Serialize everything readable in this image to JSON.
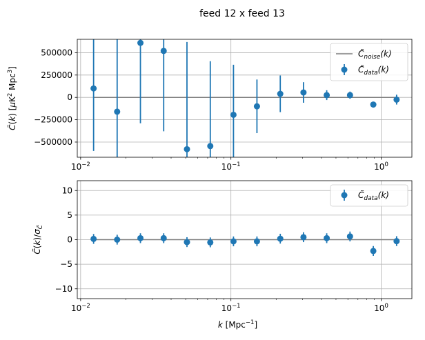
{
  "figure_title": "feed 12 x feed 13",
  "chart_data": [
    {
      "type": "scatter",
      "x": [
        0.0122,
        0.0175,
        0.025,
        0.0357,
        0.051,
        0.0729,
        0.104,
        0.149,
        0.213,
        0.304,
        0.434,
        0.62,
        0.886,
        1.266
      ],
      "series": [
        {
          "name": "C̃data(k)",
          "values": [
            100000,
            -160000,
            610000,
            520000,
            -580000,
            -545000,
            -195000,
            -100000,
            40000,
            55000,
            25000,
            25000,
            -80000,
            -25000
          ],
          "errors": [
            700000,
            1000000,
            900000,
            900000,
            1200000,
            950000,
            560000,
            300000,
            205000,
            115000,
            55000,
            40000,
            20000,
            55000
          ],
          "color": "#1f77b4"
        },
        {
          "name": "C̃noise(k)",
          "values": [
            0,
            0,
            0,
            0,
            0,
            0,
            0,
            0,
            0,
            0,
            0,
            0,
            0,
            0
          ],
          "color": "#7f7f7f"
        }
      ],
      "xscale": "log",
      "xlim": [
        0.0095,
        1.6
      ],
      "ylim": [
        -670000,
        650000
      ],
      "xticks": [
        0.01,
        0.1,
        1
      ],
      "xtick_labels": [
        {
          "base": "10",
          "exp": "−2"
        },
        {
          "base": "10",
          "exp": "−1"
        },
        {
          "base": "10",
          "exp": "0"
        }
      ],
      "yticks": [
        500000,
        250000,
        0,
        -250000,
        -500000
      ],
      "ytick_labels": [
        "500000",
        "250000",
        "0",
        "−250000",
        "−500000"
      ],
      "ylabel": "C̃(k) [μK² Mpc³]",
      "xlabel": "",
      "grid": true,
      "legend": [
        "C̃noise(k)",
        "C̃data(k)"
      ],
      "legend_position": "top-right"
    },
    {
      "type": "scatter",
      "x": [
        0.0122,
        0.0175,
        0.025,
        0.0357,
        0.051,
        0.0729,
        0.104,
        0.149,
        0.213,
        0.304,
        0.434,
        0.62,
        0.886,
        1.266
      ],
      "series": [
        {
          "name": "C̃data(k)",
          "values": [
            0.15,
            0.0,
            0.3,
            0.3,
            -0.5,
            -0.55,
            -0.35,
            -0.35,
            0.2,
            0.5,
            0.3,
            0.65,
            -2.3,
            -0.3
          ],
          "errors": [
            1,
            1,
            1,
            1,
            1,
            1,
            1,
            1,
            1,
            1,
            1,
            1,
            1,
            1
          ],
          "color": "#1f77b4"
        }
      ],
      "xscale": "log",
      "xlim": [
        0.0095,
        1.6
      ],
      "ylim": [
        -12,
        12
      ],
      "xticks": [
        0.01,
        0.1,
        1
      ],
      "xtick_labels": [
        {
          "base": "10",
          "exp": "−2"
        },
        {
          "base": "10",
          "exp": "−1"
        },
        {
          "base": "10",
          "exp": "0"
        }
      ],
      "yticks": [
        10,
        5,
        0,
        -5,
        -10
      ],
      "ytick_labels": [
        "10",
        "5",
        "0",
        "−5",
        "−10"
      ],
      "ylabel": "C̃(k)/σC̃",
      "xlabel": "k [Mpc⁻¹]",
      "grid": true,
      "legend": [
        "C̃data(k)"
      ],
      "legend_position": "top-right"
    }
  ]
}
